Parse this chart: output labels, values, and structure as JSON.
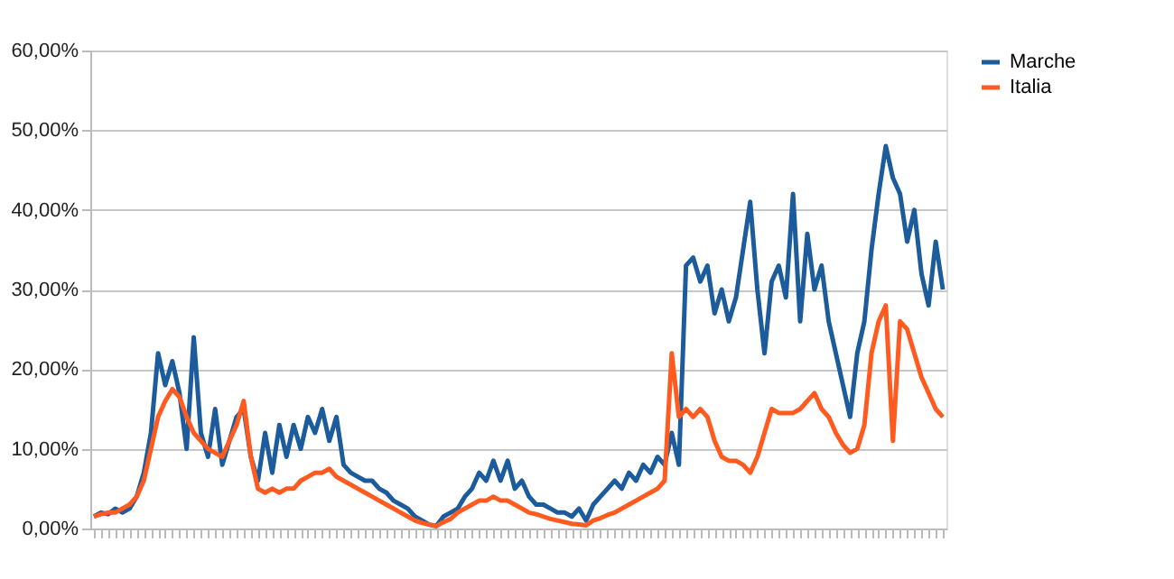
{
  "chart_data": {
    "type": "line",
    "categories": [
      null,
      null,
      null,
      null,
      null,
      null,
      null,
      null,
      null,
      null,
      null,
      null,
      null,
      null,
      null,
      null,
      null,
      null,
      null,
      null,
      null,
      null,
      null,
      null,
      null,
      null,
      null,
      null,
      null,
      null,
      null,
      null,
      null,
      null,
      null,
      null,
      null,
      null,
      null,
      null,
      null,
      null,
      null,
      null,
      null,
      null,
      null,
      null,
      null,
      null,
      null,
      null,
      null,
      null,
      null,
      null,
      null,
      null,
      null,
      null,
      null,
      null,
      null,
      null,
      null,
      null,
      null,
      null,
      null,
      null,
      null,
      null,
      null,
      null,
      null,
      null,
      null,
      null,
      null,
      null,
      null,
      null,
      null,
      null,
      null,
      null,
      null,
      null,
      null,
      null,
      null,
      null,
      null,
      null,
      null,
      null,
      null,
      null,
      null,
      null,
      null,
      null,
      null,
      null,
      null,
      null,
      null,
      null,
      null,
      null,
      null,
      null,
      null,
      null,
      null,
      null,
      null,
      null,
      null,
      null
    ],
    "series": [
      {
        "name": "Marche",
        "color": "#1c5c9c",
        "values": [
          1.5,
          2,
          1.8,
          2.5,
          2,
          2.5,
          4,
          7,
          12,
          22,
          18,
          21,
          17,
          10,
          24,
          12,
          9,
          15,
          8,
          11,
          14,
          15,
          9,
          6,
          12,
          7,
          13,
          9,
          13,
          10,
          14,
          12,
          15,
          11,
          14,
          8,
          7,
          6.5,
          6,
          6,
          5,
          4.5,
          3.5,
          3,
          2.5,
          1.5,
          1,
          0.5,
          0.3,
          1.5,
          2,
          2.5,
          4,
          5,
          7,
          6,
          8.5,
          6,
          8.5,
          5,
          6,
          4,
          3,
          3,
          2.5,
          2,
          2,
          1.5,
          2.5,
          1,
          3,
          4,
          5,
          6,
          5,
          7,
          6,
          8,
          7,
          9,
          8,
          12,
          8,
          33,
          34,
          31,
          33,
          27,
          30,
          26,
          29,
          35,
          41,
          30,
          22,
          31,
          33,
          29,
          42,
          26,
          37,
          30,
          33,
          26,
          22,
          18,
          14,
          22,
          26,
          35,
          42,
          48,
          44,
          42,
          36,
          40,
          32,
          28,
          36,
          30
        ]
      },
      {
        "name": "Italia",
        "color": "#ff5a1f",
        "values": [
          1.5,
          1.8,
          2,
          2,
          2.5,
          3,
          4,
          6,
          10,
          14,
          16,
          17.5,
          16.5,
          14,
          12,
          11,
          10,
          9.5,
          9,
          11,
          13,
          16,
          9,
          5,
          4.5,
          5,
          4.5,
          5,
          5,
          6,
          6.5,
          7,
          7,
          7.5,
          6.5,
          6,
          5.5,
          5,
          4.5,
          4,
          3.5,
          3,
          2.5,
          2,
          1.5,
          1,
          0.7,
          0.5,
          0.3,
          0.8,
          1.2,
          2,
          2.5,
          3,
          3.5,
          3.5,
          4,
          3.5,
          3.5,
          3,
          2.5,
          2,
          1.8,
          1.5,
          1.2,
          1,
          0.8,
          0.6,
          0.5,
          0.4,
          1,
          1.3,
          1.7,
          2,
          2.5,
          3,
          3.5,
          4,
          4.5,
          5,
          6,
          22,
          14,
          15,
          14,
          15,
          14,
          11,
          9,
          8.5,
          8.5,
          8,
          7,
          9,
          12,
          15,
          14.5,
          14.5,
          14.5,
          15,
          16,
          17,
          15,
          14,
          12,
          10.5,
          9.5,
          10,
          13,
          22,
          26,
          28,
          11,
          26,
          25,
          22,
          19,
          17,
          15,
          14
        ]
      }
    ],
    "ylim": [
      0,
      60
    ],
    "yticks": [
      {
        "value": 0,
        "label": "0,00%"
      },
      {
        "value": 10,
        "label": "10,00%"
      },
      {
        "value": 20,
        "label": "20,00%"
      },
      {
        "value": 30,
        "label": "30,00%"
      },
      {
        "value": 40,
        "label": "40,00%"
      },
      {
        "value": 50,
        "label": "50,00%"
      },
      {
        "value": 60,
        "label": "60,00%"
      }
    ],
    "grid": "y",
    "legend": "right",
    "tick_labels": "y",
    "marker": "none",
    "line_style": "solid"
  }
}
